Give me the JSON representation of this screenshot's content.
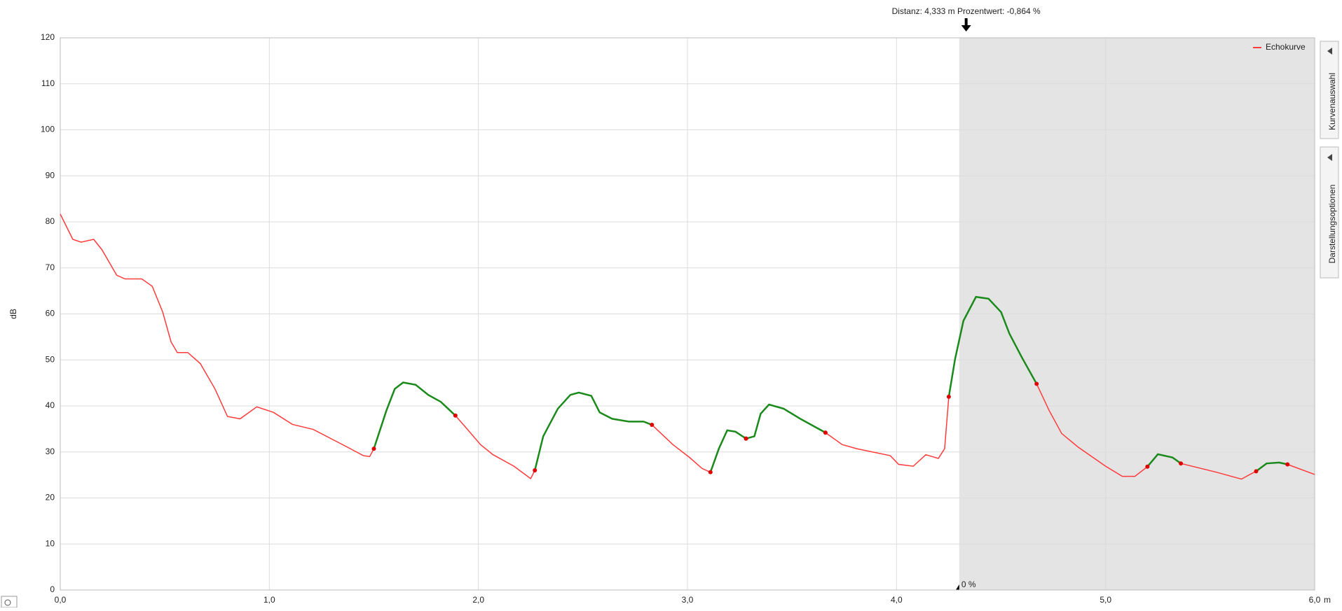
{
  "chart_data": {
    "type": "line",
    "annotation": "Distanz: 4,333 m Prozentwert: -0,864 %",
    "cursor_x": 4.333,
    "shaded_xlim": [
      4.3,
      6.0
    ],
    "shaded_label": "0 %",
    "ylabel": "dB",
    "xunit": "m",
    "xlim": [
      0,
      6
    ],
    "ylim": [
      0,
      120
    ],
    "xticks": [
      {
        "value": 0,
        "label": "0,0"
      },
      {
        "value": 1,
        "label": "1,0"
      },
      {
        "value": 2,
        "label": "2,0"
      },
      {
        "value": 3,
        "label": "3,0"
      },
      {
        "value": 4,
        "label": "4,0"
      },
      {
        "value": 5,
        "label": "5,0"
      },
      {
        "value": 6,
        "label": "6,0"
      }
    ],
    "yticks": [
      0,
      10,
      20,
      30,
      40,
      50,
      60,
      70,
      80,
      90,
      100,
      110,
      120
    ],
    "grid": true,
    "legend": "upper right",
    "series": [
      {
        "name": "Echokurve",
        "color": "#ff3b3b",
        "x": [
          0,
          0.06,
          0.1,
          0.16,
          0.2,
          0.27,
          0.31,
          0.39,
          0.44,
          0.49,
          0.53,
          0.56,
          0.61,
          0.67,
          0.74,
          0.8,
          0.86,
          0.9,
          0.94,
          1.02,
          1.11,
          1.21,
          1.35,
          1.45,
          1.48,
          1.5,
          1.56,
          1.6,
          1.64,
          1.7,
          1.76,
          1.82,
          1.89,
          1.94,
          2.01,
          2.07,
          2.17,
          2.25,
          2.27,
          2.31,
          2.38,
          2.44,
          2.48,
          2.54,
          2.58,
          2.64,
          2.72,
          2.79,
          2.83,
          2.93,
          3.01,
          3.07,
          3.11,
          3.15,
          3.19,
          3.23,
          3.28,
          3.32,
          3.35,
          3.39,
          3.46,
          3.54,
          3.66,
          3.74,
          3.81,
          3.97,
          4.01,
          4.08,
          4.14,
          4.2,
          4.23,
          4.25,
          4.28,
          4.32,
          4.38,
          4.44,
          4.5,
          4.54,
          4.6,
          4.67,
          4.73,
          4.79,
          4.87,
          5.0,
          5.08,
          5.14,
          5.2,
          5.25,
          5.32,
          5.36,
          5.53,
          5.65,
          5.69,
          5.72,
          5.77,
          5.83,
          5.87,
          6.0
        ],
        "values": [
          81.7,
          76.2,
          75.6,
          76.2,
          73.9,
          68.4,
          67.6,
          67.6,
          66,
          60.4,
          53.9,
          51.6,
          51.6,
          49.2,
          43.7,
          37.7,
          37.2,
          38.5,
          39.8,
          38.6,
          36,
          34.9,
          31.6,
          29.2,
          29,
          30.7,
          39,
          43.7,
          45.1,
          44.6,
          42.4,
          40.9,
          37.9,
          35.3,
          31.6,
          29.4,
          26.9,
          24.2,
          26,
          33.4,
          39.4,
          42.4,
          42.9,
          42.2,
          38.6,
          37.2,
          36.6,
          36.6,
          35.9,
          31.6,
          28.8,
          26.4,
          25.6,
          30.7,
          34.7,
          34.4,
          32.9,
          33.4,
          38.3,
          40.3,
          39.4,
          37.2,
          34.2,
          31.6,
          30.7,
          29.2,
          27.3,
          26.9,
          29.4,
          28.6,
          30.7,
          42,
          50.2,
          58.5,
          63.7,
          63.3,
          60.4,
          55.7,
          50.5,
          44.8,
          39,
          34,
          31,
          26.9,
          24.7,
          24.7,
          26.8,
          29.5,
          28.8,
          27.5,
          25.6,
          24.1,
          25.1,
          25.8,
          27.5,
          27.7,
          27.3,
          25.1
        ]
      }
    ],
    "highlight_color": "#1a8a1a",
    "marker_color": "#e00000",
    "highlights": [
      [
        1.5,
        1.89
      ],
      [
        2.27,
        2.83
      ],
      [
        3.11,
        3.28
      ],
      [
        3.28,
        3.66
      ],
      [
        4.25,
        4.67
      ],
      [
        5.2,
        5.36
      ],
      [
        5.72,
        5.87
      ]
    ]
  },
  "side_tabs": [
    "Kurvenauswahl",
    "Darstellungsoptionen"
  ]
}
